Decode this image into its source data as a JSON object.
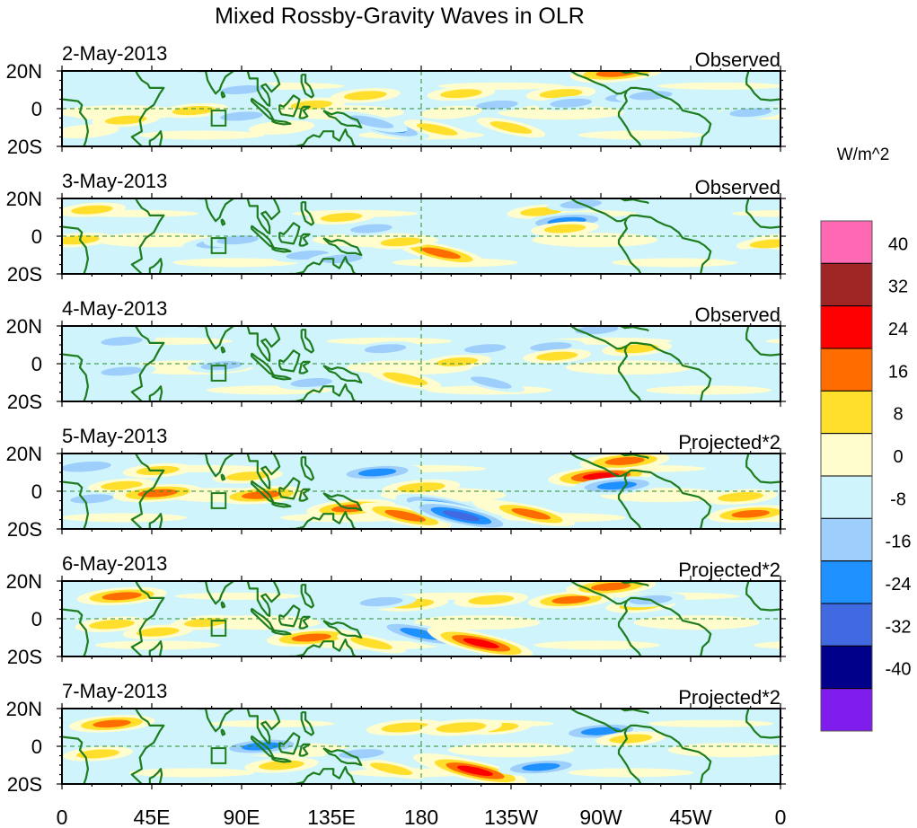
{
  "chart_data": {
    "type": "heatmap",
    "title": "Mixed Rossby-Gravity Waves in OLR",
    "units_label": "W/m^2",
    "xlabel": "",
    "ylabel": "",
    "x_ticks": [
      {
        "lon": 0,
        "label": "0"
      },
      {
        "lon": 45,
        "label": "45E"
      },
      {
        "lon": 90,
        "label": "90E"
      },
      {
        "lon": 135,
        "label": "135E"
      },
      {
        "lon": 180,
        "label": "180"
      },
      {
        "lon": 225,
        "label": "135W"
      },
      {
        "lon": 270,
        "label": "90W"
      },
      {
        "lon": 315,
        "label": "45W"
      },
      {
        "lon": 360,
        "label": "0"
      }
    ],
    "y_ticks": [
      {
        "lat": 20,
        "label": "20N"
      },
      {
        "lat": 0,
        "label": "0"
      },
      {
        "lat": -20,
        "label": "20S"
      }
    ],
    "xlim": [
      0,
      360
    ],
    "ylim": [
      -20,
      20
    ],
    "reference_lines": {
      "equator_lat": 0,
      "dateline_lon": 180,
      "style": "dashed",
      "color": "#2e8b2e"
    },
    "highlight_box": {
      "lon": [
        75,
        82
      ],
      "lat": [
        -9,
        -1
      ],
      "color": "#1e7d1e"
    },
    "colorbar": {
      "placement": "right",
      "levels": [
        -40,
        -32,
        -24,
        -16,
        -8,
        0,
        8,
        16,
        24,
        32,
        40
      ],
      "colors": [
        "#7f1ded",
        "#00008b",
        "#4169e1",
        "#1e90ff",
        "#9dcefc",
        "#cff4fc",
        "#fffdcd",
        "#ffdf2c",
        "#ff6d00",
        "#ff0000",
        "#a02525",
        "#ff69b4"
      ]
    },
    "panels": [
      {
        "date": "2-May-2013",
        "label": "Observed",
        "anomalies": [
          {
            "lon": 22,
            "lat": -2,
            "value": 8
          },
          {
            "lon": 32,
            "lat": -6,
            "value": 9
          },
          {
            "lon": 12,
            "lat": -12,
            "value": 8
          },
          {
            "lon": 66,
            "lat": -1,
            "value": 10
          },
          {
            "lon": 90,
            "lat": 10,
            "value": -9
          },
          {
            "lon": 90,
            "lat": -4,
            "value": -10
          },
          {
            "lon": 125,
            "lat": 2,
            "value": 9
          },
          {
            "lon": 110,
            "lat": -10,
            "value": 8
          },
          {
            "lon": 152,
            "lat": 7,
            "value": 10
          },
          {
            "lon": 163,
            "lat": -10,
            "value": -18
          },
          {
            "lon": 155,
            "lat": -7,
            "value": -12
          },
          {
            "lon": 200,
            "lat": 8,
            "value": 9
          },
          {
            "lon": 188,
            "lat": -11,
            "value": 9
          },
          {
            "lon": 250,
            "lat": 8,
            "value": 10
          },
          {
            "lon": 275,
            "lat": 18,
            "value": 14
          },
          {
            "lon": 278,
            "lat": 19,
            "value": 22
          },
          {
            "lon": 283,
            "lat": 6,
            "value": -10
          },
          {
            "lon": 295,
            "lat": 7,
            "value": -10
          },
          {
            "lon": 218,
            "lat": 2,
            "value": -9
          },
          {
            "lon": 255,
            "lat": 3,
            "value": -9
          },
          {
            "lon": 345,
            "lat": -2,
            "value": -9
          },
          {
            "lon": 195,
            "lat": -2,
            "value": 6
          },
          {
            "lon": 225,
            "lat": -10,
            "value": 10
          }
        ]
      },
      {
        "date": "3-May-2013",
        "label": "Observed",
        "anomalies": [
          {
            "lon": 8,
            "lat": -2,
            "value": 10
          },
          {
            "lon": 15,
            "lat": 14,
            "value": 9
          },
          {
            "lon": 78,
            "lat": -4,
            "value": -10
          },
          {
            "lon": 88,
            "lat": -2,
            "value": -9
          },
          {
            "lon": 123,
            "lat": -10,
            "value": -10
          },
          {
            "lon": 140,
            "lat": 10,
            "value": 9
          },
          {
            "lon": 155,
            "lat": 4,
            "value": -9
          },
          {
            "lon": 188,
            "lat": -9,
            "value": 13
          },
          {
            "lon": 190,
            "lat": -9,
            "value": 20
          },
          {
            "lon": 170,
            "lat": -3,
            "value": 9
          },
          {
            "lon": 240,
            "lat": 13,
            "value": 9
          },
          {
            "lon": 253,
            "lat": 8,
            "value": -19
          },
          {
            "lon": 252,
            "lat": 4,
            "value": 9
          },
          {
            "lon": 260,
            "lat": 17,
            "value": -9
          },
          {
            "lon": 140,
            "lat": -12,
            "value": -9
          },
          {
            "lon": 355,
            "lat": -4,
            "value": 9
          },
          {
            "lon": 345,
            "lat": -10,
            "value": -6
          }
        ]
      },
      {
        "date": "4-May-2013",
        "label": "Observed",
        "anomalies": [
          {
            "lon": 30,
            "lat": -4,
            "value": -9
          },
          {
            "lon": 30,
            "lat": 12,
            "value": -9
          },
          {
            "lon": 80,
            "lat": -1,
            "value": -9
          },
          {
            "lon": 125,
            "lat": -10,
            "value": -9
          },
          {
            "lon": 162,
            "lat": 8,
            "value": -9
          },
          {
            "lon": 172,
            "lat": -8,
            "value": 12
          },
          {
            "lon": 212,
            "lat": 8,
            "value": -9
          },
          {
            "lon": 198,
            "lat": 1,
            "value": 9
          },
          {
            "lon": 215,
            "lat": -10,
            "value": -9
          },
          {
            "lon": 245,
            "lat": 9,
            "value": -9
          },
          {
            "lon": 248,
            "lat": 4,
            "value": 9
          },
          {
            "lon": 268,
            "lat": 18,
            "value": -10
          },
          {
            "lon": 288,
            "lat": 8,
            "value": 10
          }
        ]
      },
      {
        "date": "5-May-2013",
        "label": "Projected*2",
        "anomalies": [
          {
            "lon": 12,
            "lat": 13,
            "value": -16
          },
          {
            "lon": 15,
            "lat": -4,
            "value": -10
          },
          {
            "lon": 30,
            "lat": 3,
            "value": 9
          },
          {
            "lon": 48,
            "lat": 11,
            "value": 10
          },
          {
            "lon": 48,
            "lat": -1,
            "value": 20
          },
          {
            "lon": 100,
            "lat": -2,
            "value": 20
          },
          {
            "lon": 93,
            "lat": 8,
            "value": 10
          },
          {
            "lon": 145,
            "lat": -9,
            "value": 20
          },
          {
            "lon": 172,
            "lat": -13,
            "value": 22
          },
          {
            "lon": 158,
            "lat": 10,
            "value": -18
          },
          {
            "lon": 180,
            "lat": 2,
            "value": 14
          },
          {
            "lon": 193,
            "lat": -9,
            "value": -28
          },
          {
            "lon": 200,
            "lat": -13,
            "value": -30
          },
          {
            "lon": 225,
            "lat": -10,
            "value": 14
          },
          {
            "lon": 235,
            "lat": -12,
            "value": 20
          },
          {
            "lon": 270,
            "lat": 8,
            "value": 28
          },
          {
            "lon": 282,
            "lat": 16,
            "value": 20
          },
          {
            "lon": 278,
            "lat": 3,
            "value": -20
          },
          {
            "lon": 340,
            "lat": -3,
            "value": 12
          },
          {
            "lon": 345,
            "lat": -12,
            "value": 18
          }
        ]
      },
      {
        "date": "6-May-2013",
        "label": "Projected*2",
        "anomalies": [
          {
            "lon": 30,
            "lat": 12,
            "value": 20
          },
          {
            "lon": 25,
            "lat": -3,
            "value": 12
          },
          {
            "lon": 48,
            "lat": -7,
            "value": 10
          },
          {
            "lon": 72,
            "lat": -2,
            "value": 10
          },
          {
            "lon": 125,
            "lat": -10,
            "value": 20
          },
          {
            "lon": 155,
            "lat": -13,
            "value": 10
          },
          {
            "lon": 178,
            "lat": -8,
            "value": -22
          },
          {
            "lon": 180,
            "lat": -8,
            "value": -24
          },
          {
            "lon": 205,
            "lat": -11,
            "value": 20
          },
          {
            "lon": 210,
            "lat": -13,
            "value": 28
          },
          {
            "lon": 175,
            "lat": 8,
            "value": 12
          },
          {
            "lon": 215,
            "lat": 10,
            "value": 12
          },
          {
            "lon": 255,
            "lat": 10,
            "value": 18
          },
          {
            "lon": 275,
            "lat": 17,
            "value": 20
          },
          {
            "lon": 290,
            "lat": 7,
            "value": 10
          },
          {
            "lon": 295,
            "lat": 10,
            "value": -10
          },
          {
            "lon": 160,
            "lat": 9,
            "value": -10
          }
        ]
      },
      {
        "date": "7-May-2013",
        "label": "Projected*2",
        "anomalies": [
          {
            "lon": 25,
            "lat": 12,
            "value": 18
          },
          {
            "lon": 18,
            "lat": -4,
            "value": 10
          },
          {
            "lon": 100,
            "lat": 0,
            "value": -20
          },
          {
            "lon": 110,
            "lat": -10,
            "value": 12
          },
          {
            "lon": 172,
            "lat": 10,
            "value": 14
          },
          {
            "lon": 200,
            "lat": -11,
            "value": 24
          },
          {
            "lon": 207,
            "lat": -13,
            "value": 28
          },
          {
            "lon": 165,
            "lat": -12,
            "value": 10
          },
          {
            "lon": 218,
            "lat": 10,
            "value": 10
          },
          {
            "lon": 240,
            "lat": -11,
            "value": -18
          },
          {
            "lon": 270,
            "lat": 8,
            "value": -20
          },
          {
            "lon": 285,
            "lat": 4,
            "value": 10
          },
          {
            "lon": 200,
            "lat": 10,
            "value": 16
          },
          {
            "lon": 150,
            "lat": -4,
            "value": -12
          }
        ]
      }
    ]
  }
}
